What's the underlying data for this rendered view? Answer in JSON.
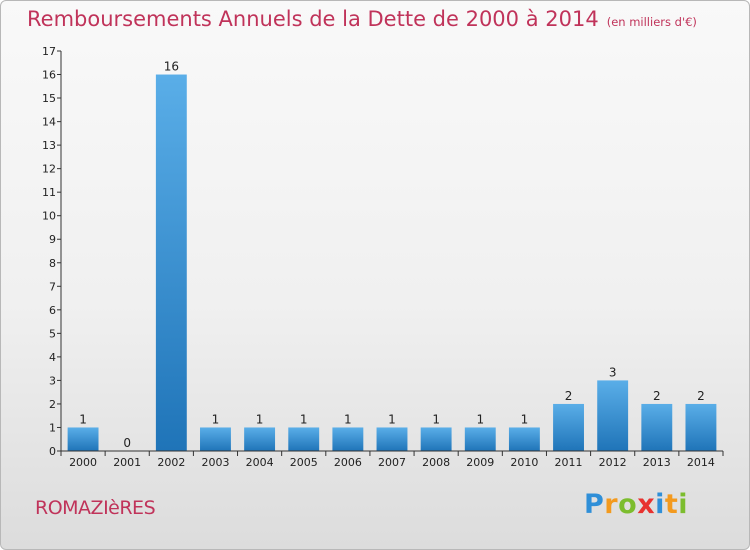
{
  "title": "Remboursements Annuels de la Dette de 2000 à 2014",
  "subtitle": "(en milliers d'€)",
  "commune": "ROMAZIèRES",
  "logo": {
    "text": "Proxiti",
    "letters": [
      {
        "ch": "P",
        "color": "#2f8fd8"
      },
      {
        "ch": "r",
        "color": "#f39a1e"
      },
      {
        "ch": "o",
        "color": "#7cbd2e"
      },
      {
        "ch": "x",
        "color": "#e8322f"
      },
      {
        "ch": "i",
        "color": "#2f8fd8"
      },
      {
        "ch": "t",
        "color": "#f39a1e"
      },
      {
        "ch": "i",
        "color": "#7cbd2e"
      }
    ]
  },
  "colors": {
    "title": "#c0335a",
    "bar_light": "#5aaee8",
    "bar_dark": "#1f74b8",
    "axis": "#333333",
    "text": "#222222"
  },
  "chart_data": {
    "type": "bar",
    "title": "Remboursements Annuels de la Dette de 2000 à 2014",
    "subtitle": "(en milliers d'€)",
    "xlabel": "",
    "ylabel": "",
    "categories": [
      "2000",
      "2001",
      "2002",
      "2003",
      "2004",
      "2005",
      "2006",
      "2007",
      "2008",
      "2009",
      "2010",
      "2011",
      "2012",
      "2013",
      "2014"
    ],
    "values": [
      1,
      0,
      16,
      1,
      1,
      1,
      1,
      1,
      1,
      1,
      1,
      2,
      3,
      2,
      2
    ],
    "data_labels": [
      "1",
      "0",
      "16",
      "1",
      "1",
      "1",
      "1",
      "1",
      "1",
      "1",
      "1",
      "2",
      "3",
      "2",
      "2"
    ],
    "ylim": [
      0,
      17
    ],
    "yticks": [
      0,
      1,
      2,
      3,
      4,
      5,
      6,
      7,
      8,
      9,
      10,
      11,
      12,
      13,
      14,
      15,
      16,
      17
    ],
    "grid": false,
    "legend": "none"
  }
}
